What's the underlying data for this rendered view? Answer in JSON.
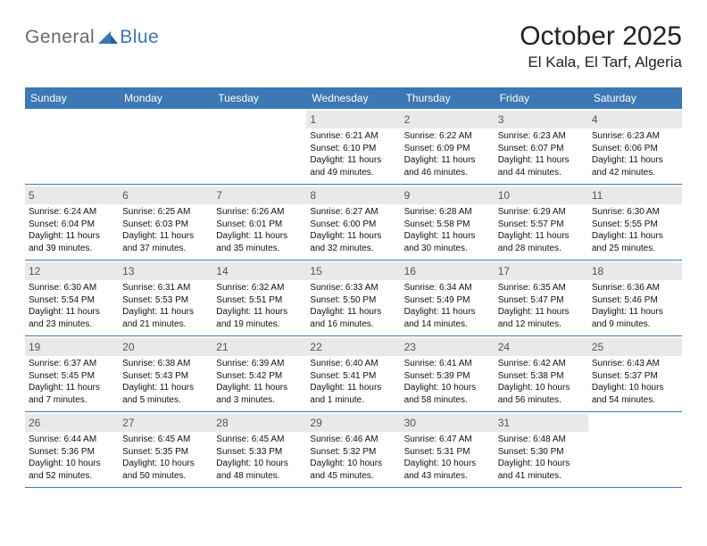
{
  "logo": {
    "word1": "General",
    "word2": "Blue"
  },
  "title": "October 2025",
  "location": "El Kala, El Tarf, Algeria",
  "colors": {
    "header_bg": "#3b78b5",
    "header_text": "#ffffff",
    "daynum_bg": "#e9e9e9",
    "daynum_text": "#555555",
    "body_text": "#111111",
    "divider": "#3b78b5",
    "logo_gray": "#6a6a6a",
    "logo_blue": "#3b78b5",
    "page_bg": "#ffffff"
  },
  "weekdays": [
    "Sunday",
    "Monday",
    "Tuesday",
    "Wednesday",
    "Thursday",
    "Friday",
    "Saturday"
  ],
  "weeks": [
    [
      {
        "n": "",
        "sunrise": "",
        "sunset": "",
        "daylight": ""
      },
      {
        "n": "",
        "sunrise": "",
        "sunset": "",
        "daylight": ""
      },
      {
        "n": "",
        "sunrise": "",
        "sunset": "",
        "daylight": ""
      },
      {
        "n": "1",
        "sunrise": "Sunrise: 6:21 AM",
        "sunset": "Sunset: 6:10 PM",
        "daylight": "Daylight: 11 hours and 49 minutes."
      },
      {
        "n": "2",
        "sunrise": "Sunrise: 6:22 AM",
        "sunset": "Sunset: 6:09 PM",
        "daylight": "Daylight: 11 hours and 46 minutes."
      },
      {
        "n": "3",
        "sunrise": "Sunrise: 6:23 AM",
        "sunset": "Sunset: 6:07 PM",
        "daylight": "Daylight: 11 hours and 44 minutes."
      },
      {
        "n": "4",
        "sunrise": "Sunrise: 6:23 AM",
        "sunset": "Sunset: 6:06 PM",
        "daylight": "Daylight: 11 hours and 42 minutes."
      }
    ],
    [
      {
        "n": "5",
        "sunrise": "Sunrise: 6:24 AM",
        "sunset": "Sunset: 6:04 PM",
        "daylight": "Daylight: 11 hours and 39 minutes."
      },
      {
        "n": "6",
        "sunrise": "Sunrise: 6:25 AM",
        "sunset": "Sunset: 6:03 PM",
        "daylight": "Daylight: 11 hours and 37 minutes."
      },
      {
        "n": "7",
        "sunrise": "Sunrise: 6:26 AM",
        "sunset": "Sunset: 6:01 PM",
        "daylight": "Daylight: 11 hours and 35 minutes."
      },
      {
        "n": "8",
        "sunrise": "Sunrise: 6:27 AM",
        "sunset": "Sunset: 6:00 PM",
        "daylight": "Daylight: 11 hours and 32 minutes."
      },
      {
        "n": "9",
        "sunrise": "Sunrise: 6:28 AM",
        "sunset": "Sunset: 5:58 PM",
        "daylight": "Daylight: 11 hours and 30 minutes."
      },
      {
        "n": "10",
        "sunrise": "Sunrise: 6:29 AM",
        "sunset": "Sunset: 5:57 PM",
        "daylight": "Daylight: 11 hours and 28 minutes."
      },
      {
        "n": "11",
        "sunrise": "Sunrise: 6:30 AM",
        "sunset": "Sunset: 5:55 PM",
        "daylight": "Daylight: 11 hours and 25 minutes."
      }
    ],
    [
      {
        "n": "12",
        "sunrise": "Sunrise: 6:30 AM",
        "sunset": "Sunset: 5:54 PM",
        "daylight": "Daylight: 11 hours and 23 minutes."
      },
      {
        "n": "13",
        "sunrise": "Sunrise: 6:31 AM",
        "sunset": "Sunset: 5:53 PM",
        "daylight": "Daylight: 11 hours and 21 minutes."
      },
      {
        "n": "14",
        "sunrise": "Sunrise: 6:32 AM",
        "sunset": "Sunset: 5:51 PM",
        "daylight": "Daylight: 11 hours and 19 minutes."
      },
      {
        "n": "15",
        "sunrise": "Sunrise: 6:33 AM",
        "sunset": "Sunset: 5:50 PM",
        "daylight": "Daylight: 11 hours and 16 minutes."
      },
      {
        "n": "16",
        "sunrise": "Sunrise: 6:34 AM",
        "sunset": "Sunset: 5:49 PM",
        "daylight": "Daylight: 11 hours and 14 minutes."
      },
      {
        "n": "17",
        "sunrise": "Sunrise: 6:35 AM",
        "sunset": "Sunset: 5:47 PM",
        "daylight": "Daylight: 11 hours and 12 minutes."
      },
      {
        "n": "18",
        "sunrise": "Sunrise: 6:36 AM",
        "sunset": "Sunset: 5:46 PM",
        "daylight": "Daylight: 11 hours and 9 minutes."
      }
    ],
    [
      {
        "n": "19",
        "sunrise": "Sunrise: 6:37 AM",
        "sunset": "Sunset: 5:45 PM",
        "daylight": "Daylight: 11 hours and 7 minutes."
      },
      {
        "n": "20",
        "sunrise": "Sunrise: 6:38 AM",
        "sunset": "Sunset: 5:43 PM",
        "daylight": "Daylight: 11 hours and 5 minutes."
      },
      {
        "n": "21",
        "sunrise": "Sunrise: 6:39 AM",
        "sunset": "Sunset: 5:42 PM",
        "daylight": "Daylight: 11 hours and 3 minutes."
      },
      {
        "n": "22",
        "sunrise": "Sunrise: 6:40 AM",
        "sunset": "Sunset: 5:41 PM",
        "daylight": "Daylight: 11 hours and 1 minute."
      },
      {
        "n": "23",
        "sunrise": "Sunrise: 6:41 AM",
        "sunset": "Sunset: 5:39 PM",
        "daylight": "Daylight: 10 hours and 58 minutes."
      },
      {
        "n": "24",
        "sunrise": "Sunrise: 6:42 AM",
        "sunset": "Sunset: 5:38 PM",
        "daylight": "Daylight: 10 hours and 56 minutes."
      },
      {
        "n": "25",
        "sunrise": "Sunrise: 6:43 AM",
        "sunset": "Sunset: 5:37 PM",
        "daylight": "Daylight: 10 hours and 54 minutes."
      }
    ],
    [
      {
        "n": "26",
        "sunrise": "Sunrise: 6:44 AM",
        "sunset": "Sunset: 5:36 PM",
        "daylight": "Daylight: 10 hours and 52 minutes."
      },
      {
        "n": "27",
        "sunrise": "Sunrise: 6:45 AM",
        "sunset": "Sunset: 5:35 PM",
        "daylight": "Daylight: 10 hours and 50 minutes."
      },
      {
        "n": "28",
        "sunrise": "Sunrise: 6:45 AM",
        "sunset": "Sunset: 5:33 PM",
        "daylight": "Daylight: 10 hours and 48 minutes."
      },
      {
        "n": "29",
        "sunrise": "Sunrise: 6:46 AM",
        "sunset": "Sunset: 5:32 PM",
        "daylight": "Daylight: 10 hours and 45 minutes."
      },
      {
        "n": "30",
        "sunrise": "Sunrise: 6:47 AM",
        "sunset": "Sunset: 5:31 PM",
        "daylight": "Daylight: 10 hours and 43 minutes."
      },
      {
        "n": "31",
        "sunrise": "Sunrise: 6:48 AM",
        "sunset": "Sunset: 5:30 PM",
        "daylight": "Daylight: 10 hours and 41 minutes."
      },
      {
        "n": "",
        "sunrise": "",
        "sunset": "",
        "daylight": ""
      }
    ]
  ]
}
